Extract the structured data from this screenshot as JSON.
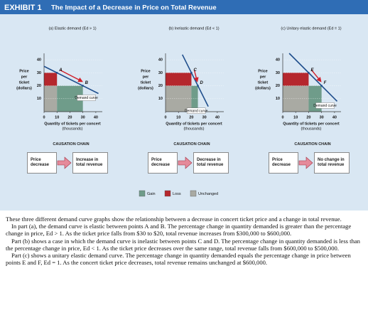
{
  "header": {
    "label": "EXHIBIT 1",
    "title": "The Impact of a Decrease in Price on Total Revenue"
  },
  "chart_data": [
    {
      "type": "line",
      "title": "(a) Elastic demand (Ed > 1)",
      "xlabel": [
        "Quantity of tickets per concert",
        "(thousands)"
      ],
      "ylabel": [
        "Price",
        "per",
        "ticket",
        "(dollars)"
      ],
      "xlim": [
        0,
        45
      ],
      "ylim": [
        0,
        45
      ],
      "xticks": [
        0,
        10,
        20,
        30,
        40
      ],
      "yticks": [
        10,
        20,
        30,
        40
      ],
      "series": [
        {
          "name": "Demand curve",
          "color": "#1f4e8c",
          "x": [
            0,
            42
          ],
          "values": [
            35,
            14
          ]
        }
      ],
      "points": [
        {
          "label": "A",
          "x": 10,
          "y": 30
        },
        {
          "label": "B",
          "x": 30,
          "y": 20
        }
      ],
      "regions": {
        "loss": {
          "x": [
            0,
            10
          ],
          "y": [
            20,
            30
          ]
        },
        "gain": {
          "x": [
            10,
            30
          ],
          "y": [
            0,
            20
          ]
        },
        "unchanged": {
          "x": [
            0,
            10
          ],
          "y": [
            0,
            20
          ]
        }
      }
    },
    {
      "type": "line",
      "title": "(b) Inelastic demand (Ed < 1)",
      "xlabel": [
        "Quantity of tickets per concert",
        "(thousands)"
      ],
      "ylabel": [
        "Price",
        "per",
        "ticket",
        "(dollars)"
      ],
      "xlim": [
        0,
        45
      ],
      "ylim": [
        0,
        45
      ],
      "xticks": [
        0,
        10,
        20,
        30,
        40
      ],
      "yticks": [
        10,
        20,
        30,
        40
      ],
      "series": [
        {
          "name": "Demand curve",
          "color": "#1f4e8c",
          "x": [
            13,
            33
          ],
          "values": [
            44,
            4
          ]
        }
      ],
      "points": [
        {
          "label": "C",
          "x": 20,
          "y": 30
        },
        {
          "label": "D",
          "x": 25,
          "y": 20
        }
      ],
      "regions": {
        "loss": {
          "x": [
            0,
            20
          ],
          "y": [
            20,
            30
          ]
        },
        "gain": {
          "x": [
            20,
            25
          ],
          "y": [
            0,
            20
          ]
        },
        "unchanged": {
          "x": [
            0,
            20
          ],
          "y": [
            0,
            20
          ]
        }
      }
    },
    {
      "type": "line",
      "title": "(c) Unitary elastic demand (Ed = 1)",
      "xlabel": [
        "Quantity of tickets per concert",
        "(thousands)"
      ],
      "ylabel": [
        "Price",
        "per",
        "ticket",
        "(dollars)"
      ],
      "xlim": [
        0,
        45
      ],
      "ylim": [
        0,
        45
      ],
      "xticks": [
        0,
        10,
        20,
        30,
        40
      ],
      "yticks": [
        10,
        20,
        30,
        40
      ],
      "series": [
        {
          "name": "Demand curve",
          "color": "#1f4e8c",
          "x": [
            5,
            42
          ],
          "values": [
            45,
            8
          ]
        }
      ],
      "points": [
        {
          "label": "E",
          "x": 20,
          "y": 30
        },
        {
          "label": "F",
          "x": 30,
          "y": 20
        }
      ],
      "regions": {
        "loss": {
          "x": [
            0,
            20
          ],
          "y": [
            20,
            30
          ]
        },
        "gain": {
          "x": [
            20,
            30
          ],
          "y": [
            0,
            20
          ]
        },
        "unchanged": {
          "x": [
            0,
            20
          ],
          "y": [
            0,
            20
          ]
        }
      }
    }
  ],
  "causation_chains": [
    {
      "heading": "CAUSATION CHAIN",
      "cause": "Price decrease",
      "effect": "Increase in total revenue"
    },
    {
      "heading": "CAUSATION CHAIN",
      "cause": "Price decrease",
      "effect": "Decrease in total revenue"
    },
    {
      "heading": "CAUSATION CHAIN",
      "cause": "Price decrease",
      "effect": "No change in total revenue"
    }
  ],
  "legend": {
    "gain": {
      "label": "Gain",
      "color": "#6f9c8a"
    },
    "loss": {
      "label": "Loss",
      "color": "#b5272d"
    },
    "unchanged": {
      "label": "Unchanged",
      "color": "#a9aaa3"
    }
  },
  "body": [
    "These three different demand curve graphs show the relationship between a decrease in concert ticket price and a change in total revenue.",
    "In part (a), the demand curve is elastic between points A and B. The percentage change in quantity demanded is greater than the percentage change in price, Ed > 1. As the ticket price falls from $30 to $20, total revenue increases from $300,000 to $600,000.",
    "Part (b) shows a case in which the demand curve is inelastic between points C and D. The percentage change in quantity demanded is less than the percentage change in price, Ed < 1. As the ticket price decreases over the same range, total revenue falls from $600,000 to $500,000.",
    "Part (c) shows a unitary elastic demand curve. The percentage change in quantity demanded equals the percentage change in price between points E and F, Ed = 1. As the concert ticket price decreases, total revenue remains unchanged at $600,000."
  ]
}
